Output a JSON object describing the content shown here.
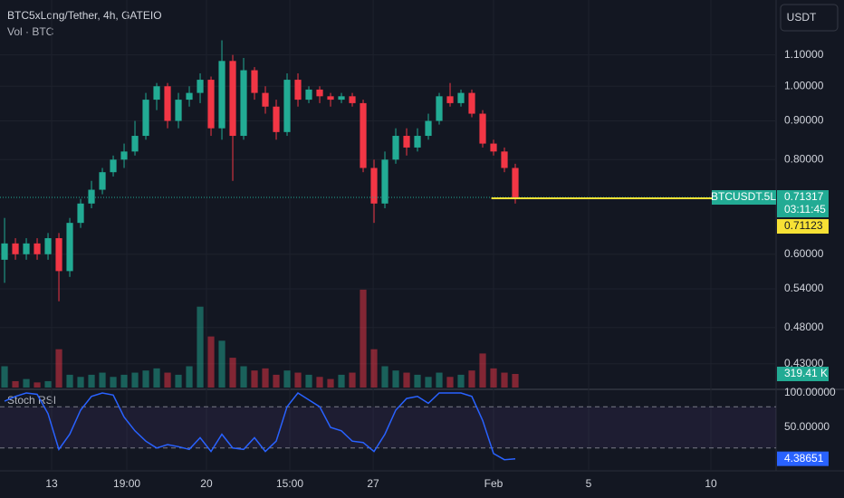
{
  "header": {
    "title": "BTC5xLong/Tether, 4h, GATEIO",
    "volume_label": "Vol · BTC",
    "currency_button": "USDT"
  },
  "chart_data": {
    "type": "candlestick",
    "log_scale": true,
    "ylim": [
      0.4,
      1.3
    ],
    "yticks": [
      {
        "value": 0.43,
        "label": "0.43000"
      },
      {
        "value": 0.48,
        "label": "0.48000"
      },
      {
        "value": 0.54,
        "label": "0.54000"
      },
      {
        "value": 0.6,
        "label": "0.60000"
      },
      {
        "value": 0.8,
        "label": "0.80000"
      },
      {
        "value": 0.9,
        "label": "0.90000"
      },
      {
        "value": 1.0,
        "label": "1.00000"
      },
      {
        "value": 1.1,
        "label": "1.10000"
      }
    ],
    "xlim": [
      -0.42,
      71
    ],
    "xticks": [
      {
        "value": 4.33,
        "label": "13"
      },
      {
        "value": 11.25,
        "label": "19:00"
      },
      {
        "value": 18.58,
        "label": "20"
      },
      {
        "value": 26.25,
        "label": "15:00"
      },
      {
        "value": 33.92,
        "label": "27"
      },
      {
        "value": 45,
        "label": "Feb"
      },
      {
        "value": 53.75,
        "label": "5"
      },
      {
        "value": 65,
        "label": "10"
      }
    ],
    "open": [
      0.59,
      0.62,
      0.6,
      0.62,
      0.6,
      0.63,
      0.57,
      0.66,
      0.7,
      0.73,
      0.77,
      0.8,
      0.82,
      0.86,
      0.96,
      1.0,
      0.9,
      0.96,
      0.98,
      1.02,
      0.88,
      1.08,
      0.86,
      1.05,
      0.98,
      0.94,
      0.87,
      1.02,
      0.96,
      0.99,
      0.97,
      0.96,
      0.97,
      0.95,
      0.78,
      0.7,
      0.8,
      0.86,
      0.83,
      0.86,
      0.9,
      0.97,
      0.95,
      0.98,
      0.92,
      0.84,
      0.82,
      0.78
    ],
    "high": [
      0.67,
      0.63,
      0.63,
      0.63,
      0.64,
      0.64,
      0.67,
      0.71,
      0.75,
      0.78,
      0.81,
      0.84,
      0.9,
      0.98,
      1.01,
      1.01,
      0.98,
      1.0,
      1.04,
      1.03,
      1.15,
      1.1,
      1.09,
      1.06,
      1.0,
      0.96,
      1.04,
      1.04,
      1.0,
      1.0,
      0.98,
      0.98,
      0.98,
      0.96,
      0.8,
      0.82,
      0.88,
      0.88,
      0.88,
      0.92,
      0.98,
      1.01,
      0.99,
      0.99,
      0.93,
      0.85,
      0.83,
      0.79
    ],
    "low": [
      0.55,
      0.59,
      0.59,
      0.59,
      0.59,
      0.52,
      0.56,
      0.65,
      0.69,
      0.72,
      0.76,
      0.78,
      0.81,
      0.85,
      0.93,
      0.88,
      0.88,
      0.94,
      0.95,
      0.86,
      0.85,
      0.75,
      0.85,
      0.96,
      0.92,
      0.85,
      0.86,
      0.94,
      0.95,
      0.95,
      0.94,
      0.95,
      0.94,
      0.77,
      0.66,
      0.69,
      0.79,
      0.81,
      0.82,
      0.85,
      0.89,
      0.94,
      0.94,
      0.91,
      0.83,
      0.81,
      0.77,
      0.7
    ],
    "close": [
      0.62,
      0.6,
      0.62,
      0.6,
      0.63,
      0.57,
      0.66,
      0.7,
      0.73,
      0.77,
      0.8,
      0.82,
      0.86,
      0.96,
      1.0,
      0.9,
      0.96,
      0.98,
      1.02,
      0.88,
      1.08,
      0.86,
      1.05,
      0.98,
      0.94,
      0.87,
      1.02,
      0.96,
      0.99,
      0.97,
      0.96,
      0.97,
      0.95,
      0.78,
      0.7,
      0.8,
      0.86,
      0.83,
      0.86,
      0.9,
      0.97,
      0.95,
      0.98,
      0.92,
      0.84,
      0.82,
      0.78,
      0.71317
    ],
    "up_color": "#22ab94",
    "down_color": "#f23645",
    "last_price": {
      "symbol": "BTCUSDT.5L",
      "value": 0.71317,
      "countdown": "03:11:45"
    },
    "price_line": {
      "value": 0.71123,
      "color": "#f7e135"
    },
    "volume": {
      "ylim": [
        0,
        3000
      ],
      "values": [
        500,
        150,
        200,
        120,
        150,
        900,
        300,
        250,
        300,
        350,
        250,
        300,
        350,
        400,
        450,
        350,
        300,
        500,
        1900,
        1200,
        1100,
        700,
        500,
        400,
        450,
        300,
        400,
        350,
        300,
        250,
        200,
        300,
        350,
        2300,
        900,
        500,
        400,
        350,
        300,
        250,
        350,
        250,
        300,
        400,
        800,
        450,
        350,
        319.41
      ],
      "last_value_label": "319.41 K"
    },
    "indicator": {
      "name": "Stoch RSI",
      "color": "#2962ff",
      "ylim": [
        0,
        100
      ],
      "yticks": [
        {
          "value": 100,
          "label": "100.00000"
        },
        {
          "value": 50,
          "label": "50.00000"
        }
      ],
      "bands": [
        20,
        80
      ],
      "values": [
        88,
        95,
        100,
        98,
        70,
        18,
        40,
        75,
        95,
        100,
        97,
        65,
        45,
        30,
        20,
        25,
        22,
        18,
        35,
        15,
        40,
        20,
        18,
        35,
        15,
        30,
        80,
        100,
        90,
        80,
        50,
        45,
        30,
        28,
        15,
        40,
        75,
        92,
        95,
        85,
        100,
        100,
        100,
        95,
        60,
        12,
        3,
        4.38651
      ]
    }
  }
}
